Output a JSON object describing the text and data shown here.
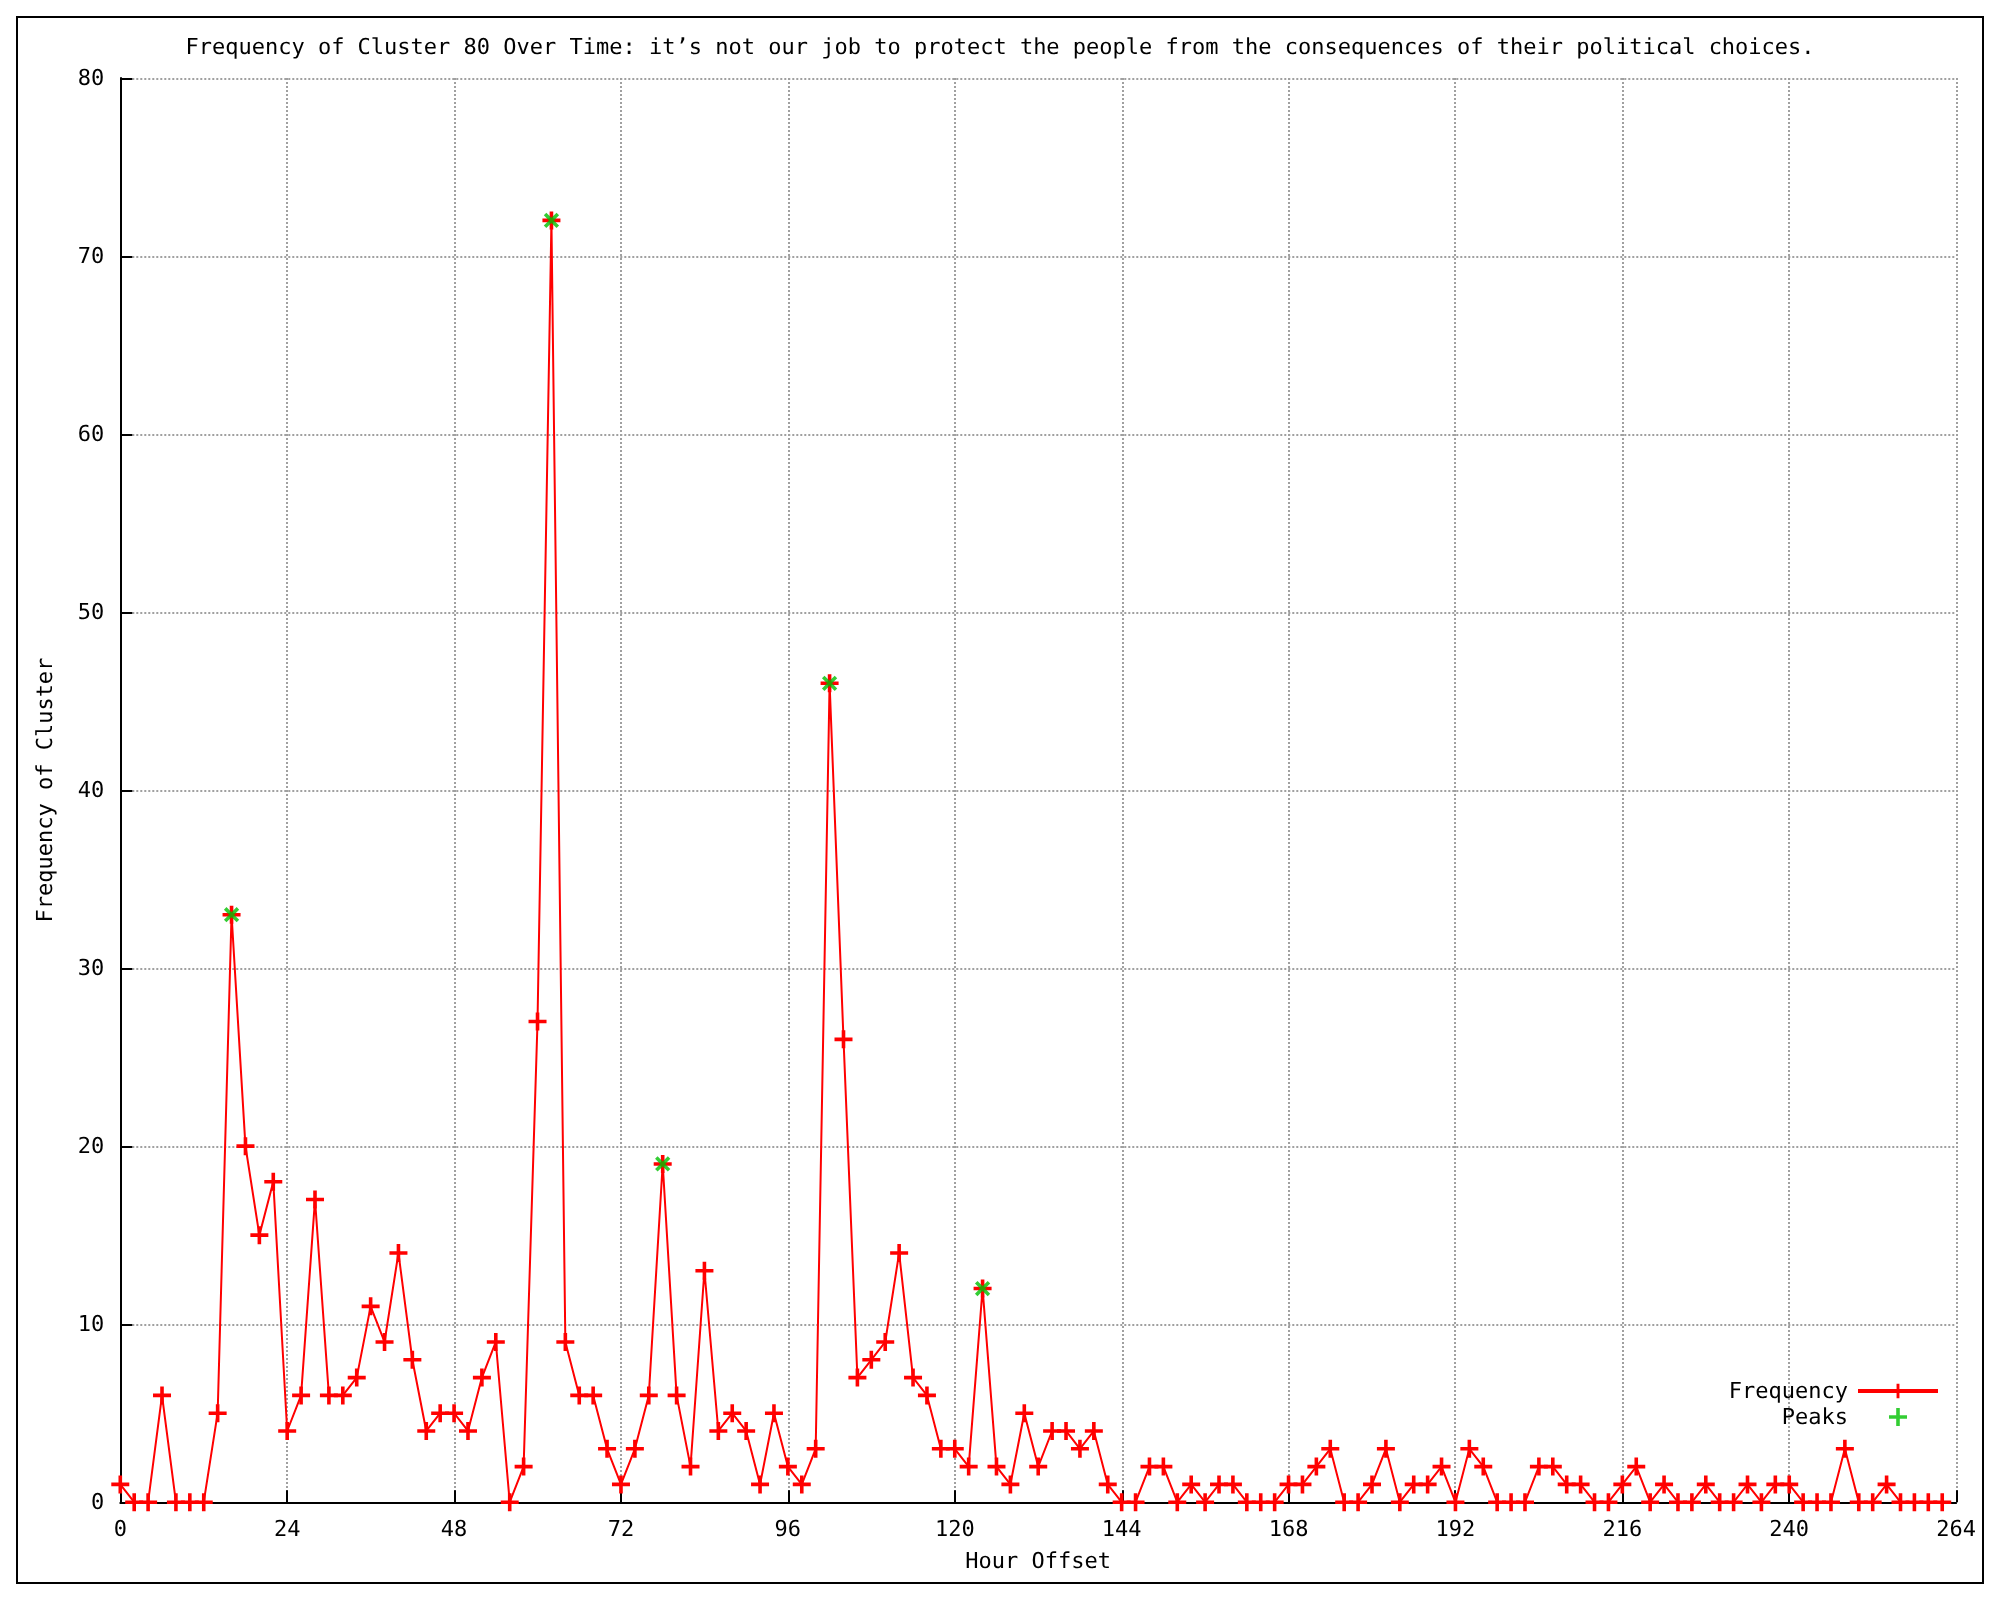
{
  "chart_data": {
    "type": "line",
    "title": "Frequency of Cluster 80 Over Time: it’s not our job to protect the people from the consequences of their political choices.",
    "xlabel": "Hour Offset",
    "ylabel": "Frequency of Cluster",
    "x": [
      0,
      2,
      4,
      6,
      8,
      10,
      12,
      14,
      16,
      18,
      20,
      22,
      24,
      26,
      28,
      30,
      32,
      34,
      36,
      38,
      40,
      42,
      44,
      46,
      48,
      50,
      52,
      54,
      56,
      58,
      60,
      62,
      64,
      66,
      68,
      70,
      72,
      74,
      76,
      78,
      80,
      82,
      84,
      86,
      88,
      90,
      92,
      94,
      96,
      98,
      100,
      102,
      104,
      106,
      108,
      110,
      112,
      114,
      116,
      118,
      120,
      122,
      124,
      126,
      128,
      130,
      132,
      134,
      136,
      138,
      140,
      142,
      144,
      146,
      148,
      150,
      152,
      154,
      156,
      158,
      160,
      162,
      164,
      166,
      168,
      170,
      172,
      174,
      176,
      178,
      180,
      182,
      184,
      186,
      188,
      190,
      192,
      194,
      196,
      198,
      200,
      202,
      204,
      206,
      208,
      210,
      212,
      214,
      216,
      218,
      220,
      222,
      224,
      226,
      228,
      230,
      232,
      234,
      236,
      238,
      240,
      242,
      244,
      246,
      248,
      250,
      252,
      254,
      256,
      258,
      260,
      262
    ],
    "xlim": [
      0,
      264
    ],
    "xticks": [
      0,
      24,
      48,
      72,
      96,
      120,
      144,
      168,
      192,
      216,
      240,
      264
    ],
    "ylim": [
      0,
      80
    ],
    "yticks": [
      0,
      10,
      20,
      30,
      40,
      50,
      60,
      70,
      80
    ],
    "grid": true,
    "legend": "bottom right",
    "marker": "cross",
    "line_style": "solid",
    "series": [
      {
        "name": "Frequency",
        "color": "#ff0000",
        "values": [
          1,
          0,
          0,
          6,
          0,
          0,
          0,
          5,
          33,
          20,
          15,
          18,
          4,
          6,
          17,
          6,
          6,
          7,
          11,
          9,
          14,
          8,
          4,
          5,
          5,
          4,
          7,
          9,
          0,
          2,
          27,
          72,
          9,
          6,
          6,
          3,
          1,
          3,
          6,
          19,
          6,
          2,
          13,
          4,
          5,
          4,
          1,
          5,
          2,
          1,
          3,
          46,
          26,
          7,
          8,
          9,
          14,
          7,
          6,
          3,
          3,
          2,
          12,
          2,
          1,
          5,
          2,
          4,
          4,
          3,
          4,
          1,
          0,
          0,
          2,
          2,
          0,
          1,
          0,
          1,
          1,
          0,
          0,
          0,
          1,
          1,
          2,
          3,
          0,
          0,
          1,
          3,
          0,
          1,
          1,
          2,
          0,
          3,
          2,
          0,
          0,
          0,
          2,
          2,
          1,
          1,
          0,
          0,
          1,
          2,
          0,
          1,
          0,
          0,
          1,
          0,
          0,
          1,
          0,
          1,
          1,
          0,
          0,
          0,
          3,
          0,
          0,
          1,
          0,
          0,
          0,
          0
        ]
      },
      {
        "name": "Peaks",
        "type": "scatter",
        "color": "#00c000",
        "x": [
          16,
          62,
          78,
          102,
          124
        ],
        "values": [
          33,
          72,
          19,
          46,
          12
        ]
      }
    ]
  }
}
